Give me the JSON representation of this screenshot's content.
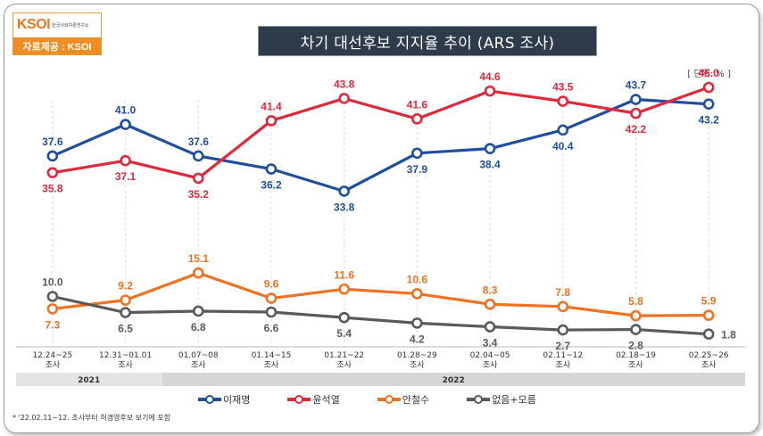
{
  "logo": {
    "mark": "KSOI",
    "org_small": "한국사회여론연구소",
    "bar_text": "자료제공 : KSOI"
  },
  "header": {
    "title": "차기 대선후보 지지율 추이 (ARS 조사)",
    "unit": "[ 단위: % ]"
  },
  "footnote": "* '22.02.11~12. 조사부터 허경영후보 보기에 포함",
  "chart_data": {
    "type": "line",
    "categories": [
      [
        "12.24~25",
        "조사"
      ],
      [
        "12.31~01.01",
        "조사"
      ],
      [
        "01.07~08",
        "조사"
      ],
      [
        "01.14~15",
        "조사"
      ],
      [
        "01.21~22",
        "조사"
      ],
      [
        "01.28~29",
        "조사"
      ],
      [
        "02.04~05",
        "조사"
      ],
      [
        "02.11~12",
        "조사"
      ],
      [
        "02.18~19",
        "조사"
      ],
      [
        "02.25~26",
        "조사"
      ]
    ],
    "year_bands": [
      {
        "label": "2021",
        "from": 0,
        "to": 1
      },
      {
        "label": "2022",
        "from": 2,
        "to": 9
      }
    ],
    "series": [
      {
        "name": "이재명",
        "color": "#1f4e9f",
        "values": [
          37.6,
          41.0,
          37.6,
          36.2,
          33.8,
          37.9,
          38.4,
          40.4,
          43.7,
          43.2
        ],
        "label_pos": [
          "above",
          "above",
          "above",
          "below",
          "below",
          "below",
          "below",
          "below",
          "above",
          "below"
        ]
      },
      {
        "name": "윤석열",
        "color": "#e0283c",
        "values": [
          35.8,
          37.1,
          35.2,
          41.4,
          43.8,
          41.6,
          44.6,
          43.5,
          42.2,
          45.0
        ],
        "label_pos": [
          "below",
          "below",
          "below",
          "above",
          "above",
          "above",
          "above",
          "above",
          "below",
          "above"
        ]
      },
      {
        "name": "안철수",
        "color": "#ee7222",
        "values": [
          7.3,
          9.2,
          15.1,
          9.6,
          11.6,
          10.6,
          8.3,
          7.8,
          5.8,
          5.9
        ],
        "label_pos": [
          "below",
          "above",
          "above",
          "above",
          "above",
          "above",
          "above",
          "above",
          "above",
          "above"
        ]
      },
      {
        "name": "없음+모름",
        "color": "#5a5a5a",
        "values": [
          10.0,
          6.5,
          6.8,
          6.6,
          5.4,
          4.2,
          3.4,
          2.7,
          2.8,
          1.8
        ],
        "label_pos": [
          "above",
          "below",
          "below",
          "below",
          "below",
          "below",
          "below",
          "below",
          "below",
          "right"
        ]
      }
    ]
  }
}
